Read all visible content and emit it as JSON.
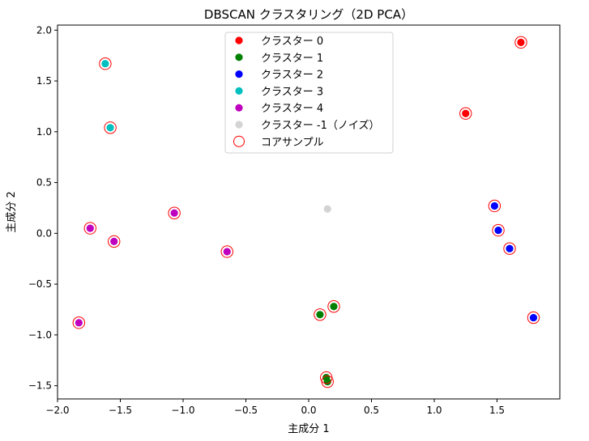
{
  "chart_data": {
    "type": "scatter",
    "title": "DBSCAN クラスタリング（2D PCA）",
    "xlabel": "主成分 1",
    "ylabel": "主成分 2",
    "xlim": [
      -2.0,
      2.0
    ],
    "ylim": [
      -1.63,
      2.05
    ],
    "xticks": [
      -2.0,
      -1.5,
      -1.0,
      -0.5,
      0.0,
      0.5,
      1.0,
      1.5
    ],
    "yticks": [
      -1.5,
      -1.0,
      -0.5,
      0.0,
      0.5,
      1.0,
      1.5,
      2.0
    ],
    "xtick_labels": [
      "−2.0",
      "−1.5",
      "−1.0",
      "−0.5",
      "0.0",
      "0.5",
      "1.0",
      "1.5"
    ],
    "ytick_labels": [
      "−1.5",
      "−1.0",
      "−0.5",
      "0.0",
      "0.5",
      "1.0",
      "1.5",
      "2.0"
    ],
    "grid": false,
    "legend_position": "top-center",
    "series": [
      {
        "name": "クラスター 0",
        "color": "#ff0000",
        "points": [
          [
            1.69,
            1.88
          ],
          [
            1.25,
            1.18
          ]
        ]
      },
      {
        "name": "クラスター 1",
        "color": "#008000",
        "points": [
          [
            0.09,
            -0.8
          ],
          [
            0.2,
            -0.72
          ],
          [
            0.14,
            -1.42
          ],
          [
            0.15,
            -1.46
          ]
        ]
      },
      {
        "name": "クラスター 2",
        "color": "#0000ff",
        "points": [
          [
            1.48,
            0.27
          ],
          [
            1.51,
            0.03
          ],
          [
            1.6,
            -0.15
          ],
          [
            1.79,
            -0.83
          ]
        ]
      },
      {
        "name": "クラスター 3",
        "color": "#00bfbf",
        "points": [
          [
            -1.62,
            1.67
          ],
          [
            -1.58,
            1.04
          ]
        ]
      },
      {
        "name": "クラスター 4",
        "color": "#bf00bf",
        "points": [
          [
            -1.07,
            0.2
          ],
          [
            -1.74,
            0.05
          ],
          [
            -1.55,
            -0.08
          ],
          [
            -0.65,
            -0.18
          ],
          [
            -1.83,
            -0.88
          ]
        ]
      },
      {
        "name": "クラスター -1（ノイズ）",
        "color": "#d3d3d3",
        "points": [
          [
            0.15,
            0.24
          ]
        ]
      }
    ],
    "core_samples": {
      "name": "コアサンプル",
      "color": "#ff0000",
      "points": [
        [
          1.69,
          1.88
        ],
        [
          1.25,
          1.18
        ],
        [
          0.09,
          -0.8
        ],
        [
          0.2,
          -0.72
        ],
        [
          0.14,
          -1.42
        ],
        [
          0.15,
          -1.46
        ],
        [
          1.48,
          0.27
        ],
        [
          1.51,
          0.03
        ],
        [
          1.6,
          -0.15
        ],
        [
          1.79,
          -0.83
        ],
        [
          -1.62,
          1.67
        ],
        [
          -1.58,
          1.04
        ],
        [
          -1.07,
          0.2
        ],
        [
          -1.74,
          0.05
        ],
        [
          -1.55,
          -0.08
        ],
        [
          -0.65,
          -0.18
        ],
        [
          -1.83,
          -0.88
        ]
      ]
    }
  }
}
